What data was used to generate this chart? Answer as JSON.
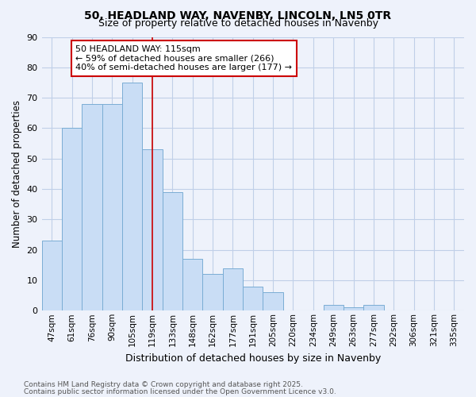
{
  "title1": "50, HEADLAND WAY, NAVENBY, LINCOLN, LN5 0TR",
  "title2": "Size of property relative to detached houses in Navenby",
  "xlabel": "Distribution of detached houses by size in Navenby",
  "ylabel": "Number of detached properties",
  "categories": [
    "47sqm",
    "61sqm",
    "76sqm",
    "90sqm",
    "105sqm",
    "119sqm",
    "133sqm",
    "148sqm",
    "162sqm",
    "177sqm",
    "191sqm",
    "205sqm",
    "220sqm",
    "234sqm",
    "249sqm",
    "263sqm",
    "277sqm",
    "292sqm",
    "306sqm",
    "321sqm",
    "335sqm"
  ],
  "values": [
    23,
    60,
    68,
    68,
    75,
    53,
    39,
    17,
    12,
    14,
    8,
    6,
    0,
    0,
    2,
    1,
    2,
    0,
    0,
    0,
    0
  ],
  "bar_color": "#c9ddf5",
  "bar_edge_color": "#7aadd4",
  "vline_x": 5,
  "vline_color": "#cc0000",
  "annotation_text": "50 HEADLAND WAY: 115sqm\n← 59% of detached houses are smaller (266)\n40% of semi-detached houses are larger (177) →",
  "annotation_box_color": "#ffffff",
  "annotation_box_edge": "#cc0000",
  "footnote1": "Contains HM Land Registry data © Crown copyright and database right 2025.",
  "footnote2": "Contains public sector information licensed under the Open Government Licence v3.0.",
  "bg_color": "#eef2fb",
  "grid_color": "#c0cfe8",
  "ylim": [
    0,
    90
  ],
  "yticks": [
    0,
    10,
    20,
    30,
    40,
    50,
    60,
    70,
    80,
    90
  ]
}
